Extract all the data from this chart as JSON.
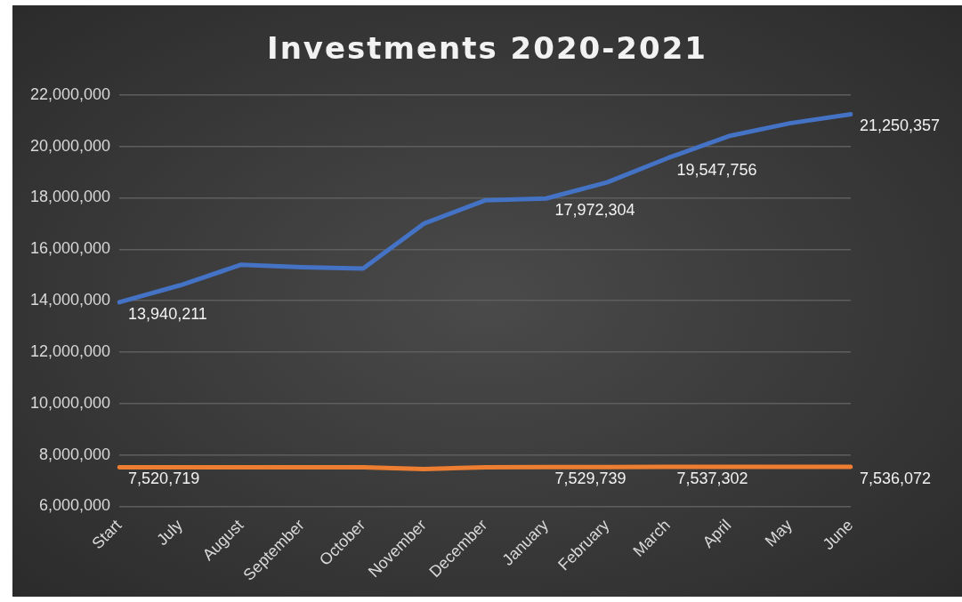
{
  "chart_data": {
    "type": "line",
    "title": "Investments 2020-2021",
    "categories": [
      "Start",
      "July",
      "August",
      "September",
      "October",
      "November",
      "December",
      "January",
      "February",
      "March",
      "April",
      "May",
      "June"
    ],
    "series": [
      {
        "color": "#4472c4",
        "values": [
          13940211,
          14600000,
          15400000,
          15300000,
          15250000,
          17000000,
          17900000,
          17972304,
          18600000,
          19547756,
          20400000,
          20900000,
          21250357
        ],
        "value_labels": [
          "13,940,211",
          null,
          null,
          null,
          null,
          null,
          null,
          "17,972,304",
          null,
          "19,547,756",
          null,
          null,
          "21,250,357"
        ]
      },
      {
        "color": "#ed7d31",
        "values": [
          7520719,
          7520000,
          7520000,
          7520000,
          7520000,
          7450000,
          7520000,
          7529739,
          7530000,
          7537302,
          7540000,
          7540000,
          7536072
        ],
        "value_labels": [
          "7,520,719",
          null,
          null,
          null,
          null,
          null,
          null,
          "7,529,739",
          null,
          "7,537,302",
          null,
          null,
          "7,536,072"
        ]
      }
    ],
    "ylim": [
      6000000,
      22000000
    ],
    "yticks": [
      {
        "value": 6000000,
        "label": "6,000,000"
      },
      {
        "value": 8000000,
        "label": "8,000,000"
      },
      {
        "value": 10000000,
        "label": "10,000,000"
      },
      {
        "value": 12000000,
        "label": "12,000,000"
      },
      {
        "value": 14000000,
        "label": "14,000,000"
      },
      {
        "value": 16000000,
        "label": "16,000,000"
      },
      {
        "value": 18000000,
        "label": "18,000,000"
      },
      {
        "value": 20000000,
        "label": "20,000,000"
      },
      {
        "value": 22000000,
        "label": "22,000,000"
      }
    ],
    "grid": "y",
    "legend": false,
    "marker": "none",
    "line_style": "solid"
  }
}
